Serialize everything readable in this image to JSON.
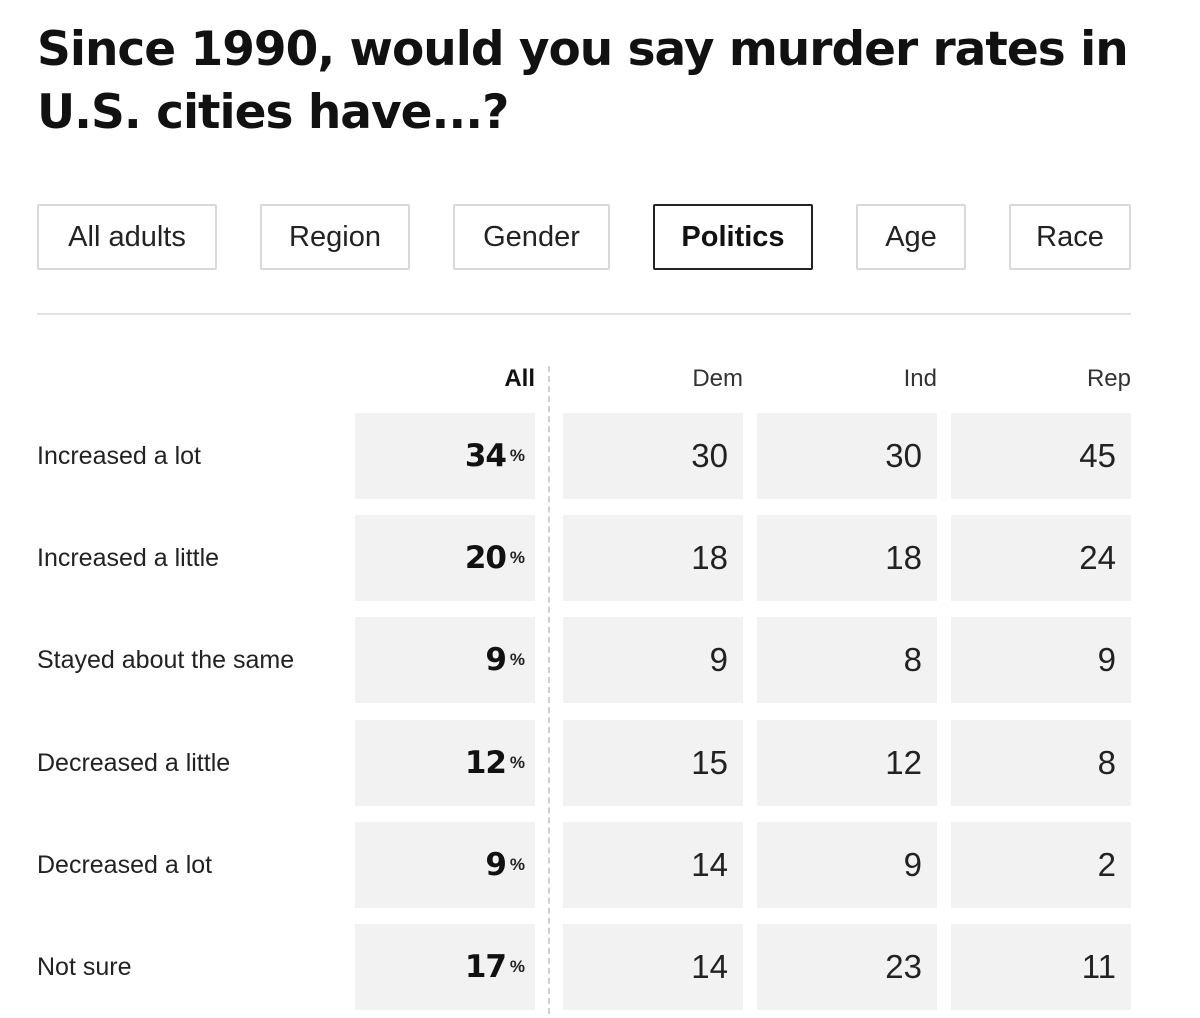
{
  "chart_data": {
    "type": "table",
    "title": "Since 1990, would you say murder rates in U.S. cities have...?",
    "tabs": [
      "All adults",
      "Region",
      "Gender",
      "Politics",
      "Age",
      "Race"
    ],
    "active_tab": "Politics",
    "columns": [
      "All",
      "Dem",
      "Ind",
      "Rep"
    ],
    "unit_symbol": "%",
    "rows": [
      {
        "label": "Increased a lot",
        "all": "34",
        "values": [
          "30",
          "30",
          "45"
        ]
      },
      {
        "label": "Increased a little",
        "all": "20",
        "values": [
          "18",
          "18",
          "24"
        ]
      },
      {
        "label": "Stayed about the same",
        "all": "9",
        "values": [
          "9",
          "8",
          "9"
        ]
      },
      {
        "label": "Decreased a little",
        "all": "12",
        "values": [
          "15",
          "12",
          "8"
        ]
      },
      {
        "label": "Decreased a lot",
        "all": "9",
        "values": [
          "14",
          "9",
          "2"
        ]
      },
      {
        "label": "Not sure",
        "all": "17",
        "values": [
          "14",
          "23",
          "11"
        ]
      }
    ],
    "colors": {
      "cell_background": "#f2f2f3",
      "tab_border": "#d9d9d9",
      "active_tab_border": "#222222",
      "divider": "#e2e2e2"
    }
  }
}
